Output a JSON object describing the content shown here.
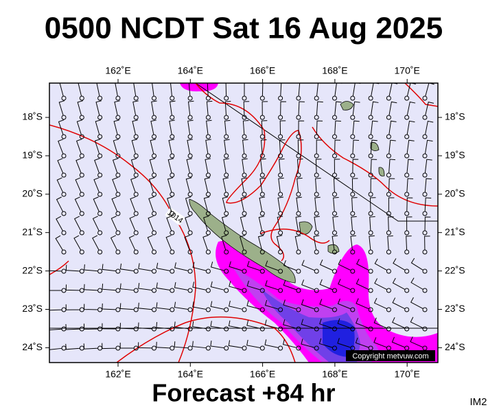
{
  "title": "0500 NCDT Sat 16 Aug 2025",
  "footer": "Forecast +84 hr",
  "corner_label": "IM2",
  "map": {
    "lon_labels": [
      "162˚E",
      "164˚E",
      "166˚E",
      "168˚E",
      "170˚E"
    ],
    "lat_labels": [
      "18˚S",
      "19˚S",
      "20˚S",
      "21˚S",
      "22˚S",
      "23˚S",
      "24˚S"
    ],
    "contour_label": "1014",
    "copyright": "Copyright metvuw.com"
  }
}
